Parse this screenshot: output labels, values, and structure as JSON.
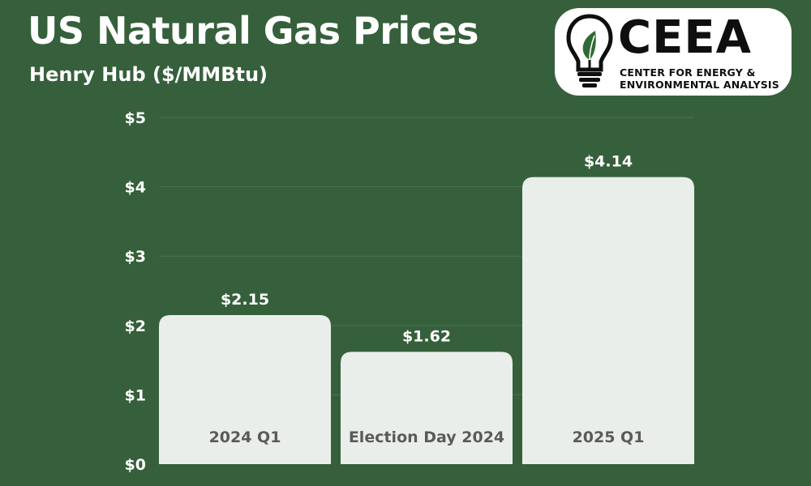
{
  "header": {
    "title": "US Natural Gas Prices",
    "subtitle": "Henry Hub ($/MMBtu)"
  },
  "logo": {
    "acronym": "CEEA",
    "name_line1": "CENTER FOR ENERGY &",
    "name_line2": "ENVIRONMENTAL ANALYSIS",
    "icon": "lightbulb-leaf-icon"
  },
  "colors": {
    "background": "#35603b",
    "bar": "#eaeeea",
    "bar_label": "#5a5a5a",
    "text": "#ffffff",
    "gridline": "#4a7350",
    "logo_dark": "#0f0f0f",
    "logo_leaf": "#2f6b35"
  },
  "chart_data": {
    "type": "bar",
    "categories": [
      "2024 Q1",
      "Election Day 2024",
      "2025 Q1"
    ],
    "values": [
      2.15,
      1.62,
      4.14
    ],
    "value_labels": [
      "$2.15",
      "$1.62",
      "$4.14"
    ],
    "ylim": [
      0,
      5
    ],
    "yticks": [
      0,
      1,
      2,
      3,
      4,
      5
    ],
    "ytick_labels": [
      "$0",
      "$1",
      "$2",
      "$3",
      "$4",
      "$5"
    ],
    "grid": true,
    "title": "US Natural Gas Prices",
    "subtitle": "Henry Hub ($/MMBtu)",
    "xlabel": "",
    "ylabel": ""
  }
}
